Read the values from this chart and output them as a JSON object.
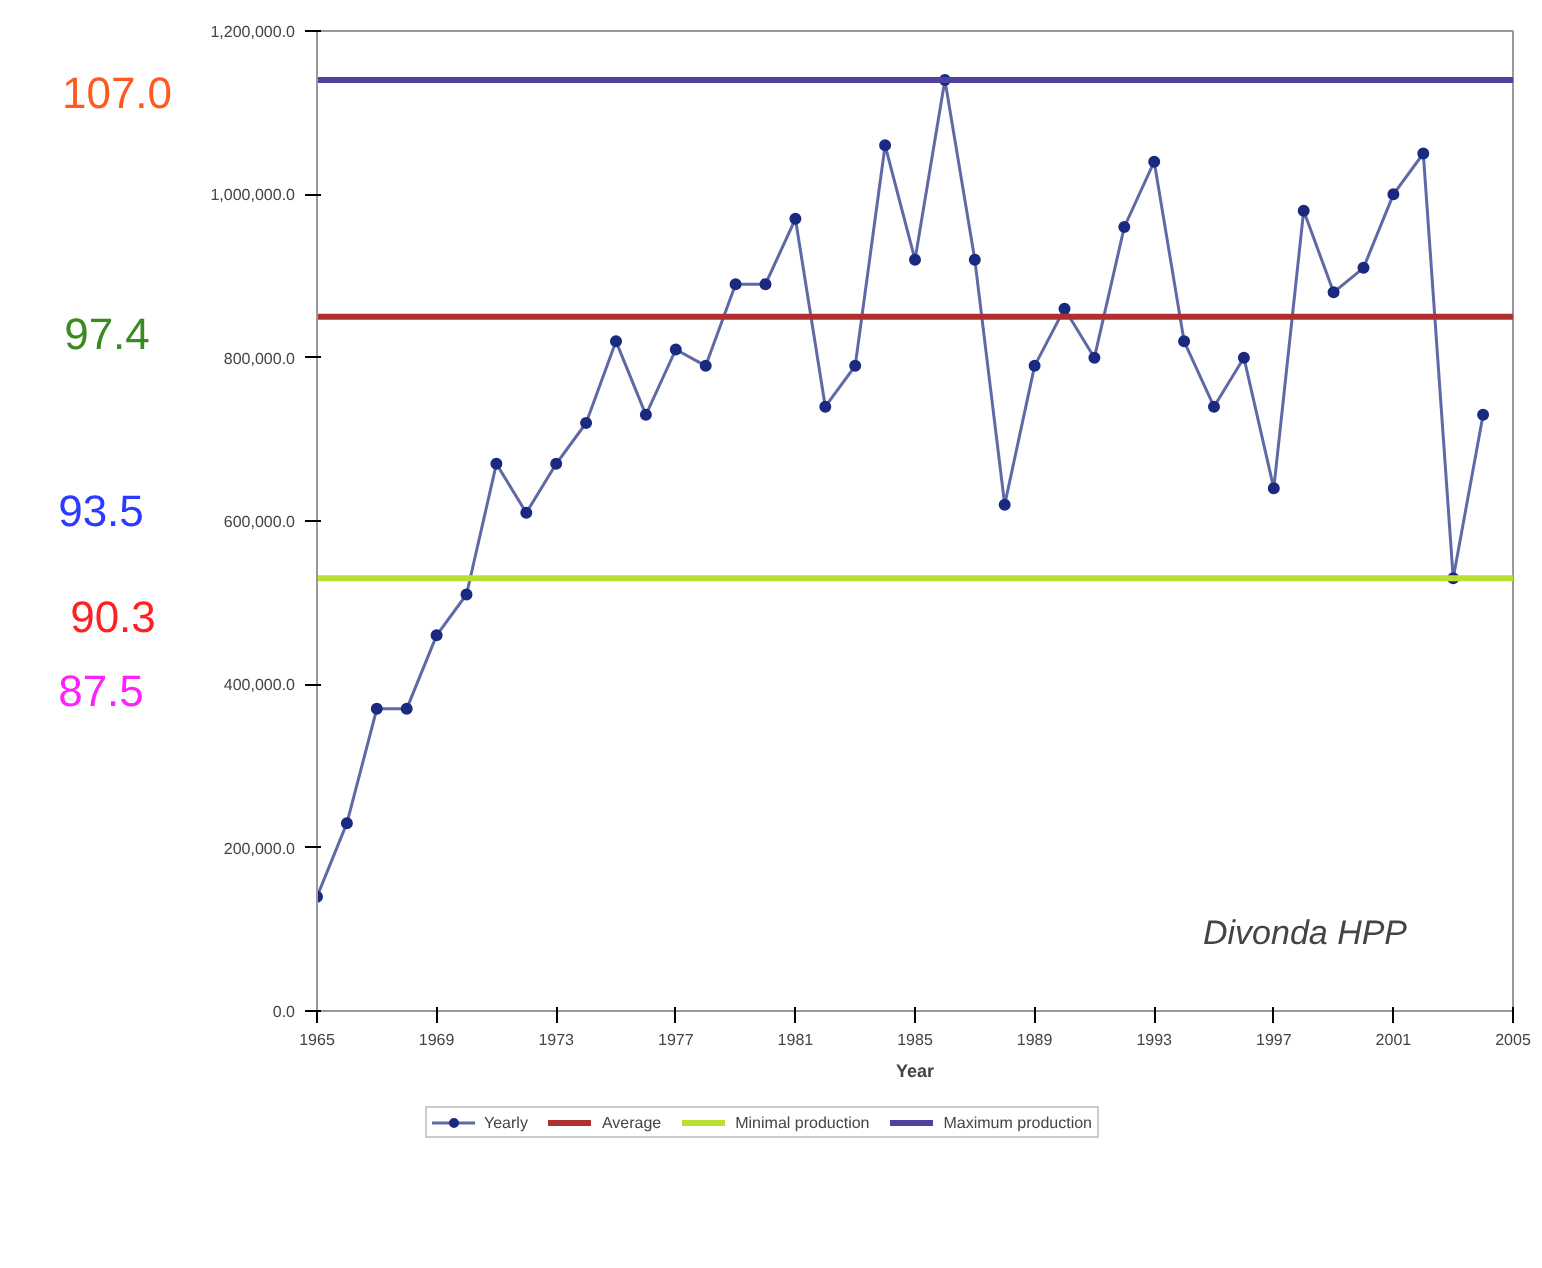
{
  "chart_data": {
    "type": "line",
    "xlabel": "Year",
    "x": [
      1965,
      1966,
      1967,
      1968,
      1969,
      1970,
      1971,
      1972,
      1973,
      1974,
      1975,
      1976,
      1977,
      1978,
      1979,
      1980,
      1981,
      1982,
      1983,
      1984,
      1985,
      1986,
      1987,
      1988,
      1989,
      1990,
      1991,
      1992,
      1993,
      1994,
      1995,
      1996,
      1997,
      1998,
      1999,
      2000,
      2001,
      2002,
      2003,
      2004
    ],
    "series": [
      {
        "name": "Yearly",
        "color": "#1a2a80",
        "values": [
          140000,
          230000,
          370000,
          370000,
          460000,
          510000,
          670000,
          610000,
          670000,
          720000,
          820000,
          730000,
          810000,
          790000,
          890000,
          890000,
          970000,
          740000,
          790000,
          1060000,
          920000,
          1140000,
          920000,
          620000,
          790000,
          860000,
          800000,
          960000,
          1040000,
          820000,
          740000,
          800000,
          640000,
          980000,
          880000,
          910000,
          1000000,
          1050000,
          530000,
          730000
        ]
      }
    ],
    "ref_lines": [
      {
        "axis": "y",
        "value": 850000,
        "label": "Average",
        "color": "#b03030"
      },
      {
        "axis": "y",
        "value": 530000,
        "label": "Minimal production",
        "color": "#b8e030"
      },
      {
        "axis": "y",
        "value": 1140000,
        "label": "Maximum production",
        "color": "#5040a0"
      }
    ],
    "xlim": [
      1965,
      2005
    ],
    "xticks": [
      1965,
      1969,
      1973,
      1977,
      1981,
      1985,
      1989,
      1993,
      1997,
      2001,
      2005
    ],
    "ylim": [
      0,
      1200000
    ],
    "yticks": [
      {
        "value": 0,
        "label": "0.0"
      },
      {
        "value": 200000,
        "label": "200,000.0"
      },
      {
        "value": 400000,
        "label": "400,000.0"
      },
      {
        "value": 600000,
        "label": "600,000.0"
      },
      {
        "value": 800000,
        "label": "800,000.0"
      },
      {
        "value": 1000000,
        "label": "1,000,000.0"
      },
      {
        "value": 1200000,
        "label": "1,200,000.0"
      }
    ],
    "annotations": [
      "107.0",
      "97.4",
      "93.5",
      "90.3",
      "87.5",
      "Divonda HPP"
    ],
    "grid": false,
    "legend": "bottom",
    "marker": "circle",
    "line_style": "solid"
  }
}
